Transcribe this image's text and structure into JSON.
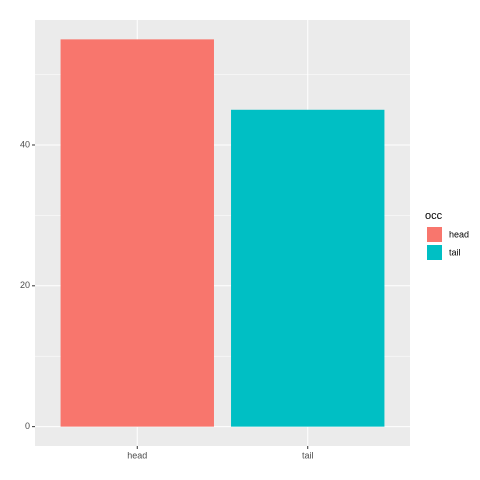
{
  "chart_data": {
    "type": "bar",
    "categories": [
      "head",
      "tail"
    ],
    "series": [
      {
        "name": "head",
        "color": "#F8766D",
        "values": [
          55,
          null
        ]
      },
      {
        "name": "tail",
        "color": "#00BFC4",
        "values": [
          null,
          45
        ]
      }
    ],
    "legend_title": "occ",
    "legend_position": "right",
    "ylim": [
      -2.75,
      57.75
    ],
    "yticks": [
      0,
      20,
      40
    ],
    "grid": true
  }
}
